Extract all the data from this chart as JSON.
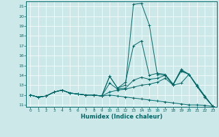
{
  "xlabel": "Humidex (Indice chaleur)",
  "ylabel": "",
  "xlim": [
    -0.5,
    23.5
  ],
  "ylim": [
    10.8,
    21.5
  ],
  "yticks": [
    11,
    12,
    13,
    14,
    15,
    16,
    17,
    18,
    19,
    20,
    21
  ],
  "xticks": [
    0,
    1,
    2,
    3,
    4,
    5,
    6,
    7,
    8,
    9,
    10,
    11,
    12,
    13,
    14,
    15,
    16,
    17,
    18,
    19,
    20,
    21,
    22,
    23
  ],
  "bg_color": "#cce8e8",
  "line_color": "#006666",
  "lines": [
    [
      12.0,
      11.8,
      11.9,
      12.3,
      12.5,
      12.2,
      12.1,
      12.0,
      12.0,
      11.9,
      13.9,
      12.7,
      13.0,
      21.2,
      21.3,
      19.1,
      14.1,
      14.0,
      13.0,
      14.5,
      14.1,
      13.0,
      11.9,
      10.85
    ],
    [
      12.0,
      11.8,
      11.9,
      12.3,
      12.5,
      12.2,
      12.1,
      12.0,
      12.0,
      11.9,
      13.9,
      12.7,
      13.3,
      17.0,
      17.5,
      14.0,
      14.2,
      14.1,
      13.1,
      14.6,
      14.1,
      12.9,
      11.8,
      10.85
    ],
    [
      12.0,
      11.8,
      11.9,
      12.3,
      12.5,
      12.2,
      12.1,
      12.0,
      12.0,
      11.9,
      13.2,
      12.6,
      12.7,
      13.5,
      13.8,
      13.6,
      13.7,
      14.0,
      13.1,
      14.4,
      14.1,
      12.9,
      11.8,
      10.85
    ],
    [
      12.0,
      11.8,
      11.9,
      12.3,
      12.5,
      12.2,
      12.1,
      12.0,
      12.0,
      11.9,
      12.3,
      12.5,
      12.6,
      12.8,
      13.0,
      13.1,
      13.3,
      13.7,
      13.0,
      13.2,
      14.1,
      12.9,
      11.8,
      10.85
    ],
    [
      12.0,
      11.8,
      11.9,
      12.3,
      12.5,
      12.2,
      12.1,
      12.0,
      12.0,
      11.9,
      12.0,
      11.9,
      11.8,
      11.7,
      11.6,
      11.5,
      11.4,
      11.3,
      11.2,
      11.1,
      11.0,
      11.0,
      10.95,
      10.85
    ]
  ]
}
